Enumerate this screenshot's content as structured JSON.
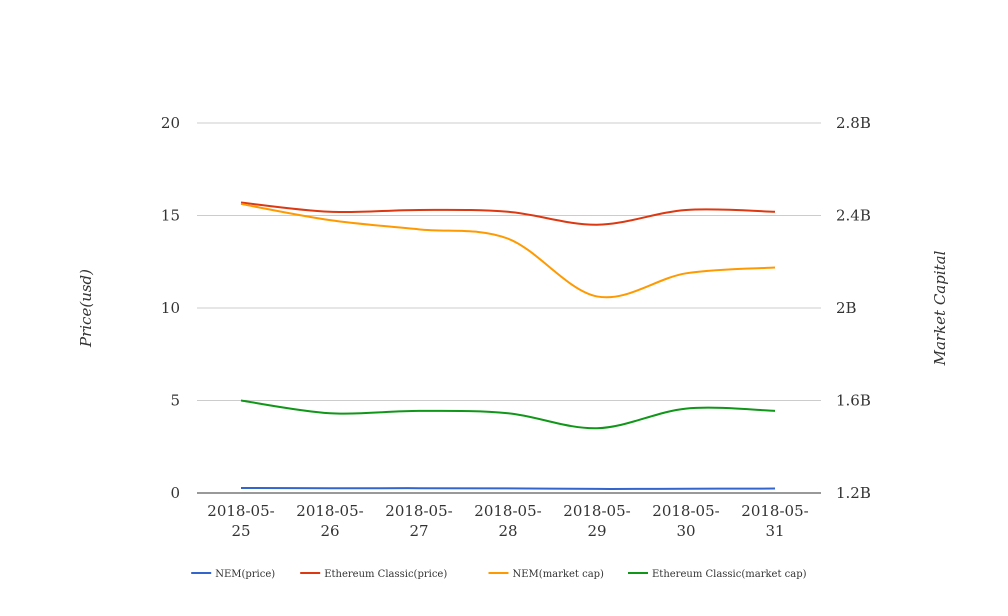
{
  "chart_data": {
    "type": "line",
    "categories": [
      "2018-05-25",
      "2018-05-26",
      "2018-05-27",
      "2018-05-28",
      "2018-05-29",
      "2018-05-30",
      "2018-05-31"
    ],
    "category_lines": [
      [
        "2018-05-",
        "25"
      ],
      [
        "2018-05-",
        "26"
      ],
      [
        "2018-05-",
        "27"
      ],
      [
        "2018-05-",
        "28"
      ],
      [
        "2018-05-",
        "29"
      ],
      [
        "2018-05-",
        "30"
      ],
      [
        "2018-05-",
        "31"
      ]
    ],
    "ylabel": "Price(usd)",
    "y2label": "Market Capital",
    "ylim": [
      0,
      20
    ],
    "yticks": [
      0,
      5,
      10,
      15,
      20
    ],
    "y2lim": [
      1200000000,
      2800000000
    ],
    "y2ticks": [
      {
        "value": 1200000000,
        "label": "1.2B"
      },
      {
        "value": 1600000000,
        "label": "1.6B"
      },
      {
        "value": 2000000000,
        "label": "2B"
      },
      {
        "value": 2400000000,
        "label": "2.4B"
      },
      {
        "value": 2800000000,
        "label": "2.8B"
      }
    ],
    "grid": true,
    "legend_position": "bottom",
    "series": [
      {
        "name": "NEM(price)",
        "axis": "left",
        "color": "#3366cc",
        "values": [
          0.27,
          0.26,
          0.26,
          0.25,
          0.22,
          0.23,
          0.24
        ]
      },
      {
        "name": "Ethereum Classic(price)",
        "axis": "left",
        "color": "#dc3912",
        "values": [
          15.7,
          15.2,
          15.3,
          15.2,
          14.5,
          15.3,
          15.2
        ]
      },
      {
        "name": "NEM(market cap)",
        "axis": "right",
        "color": "#ff9900",
        "values": [
          2450000000,
          2380000000,
          2340000000,
          2300000000,
          2050000000,
          2150000000,
          2175000000
        ]
      },
      {
        "name": "Ethereum Classic(market cap)",
        "axis": "right",
        "color": "#109618",
        "values": [
          1600000000,
          1545000000,
          1555000000,
          1545000000,
          1480000000,
          1565000000,
          1555000000
        ]
      }
    ]
  }
}
